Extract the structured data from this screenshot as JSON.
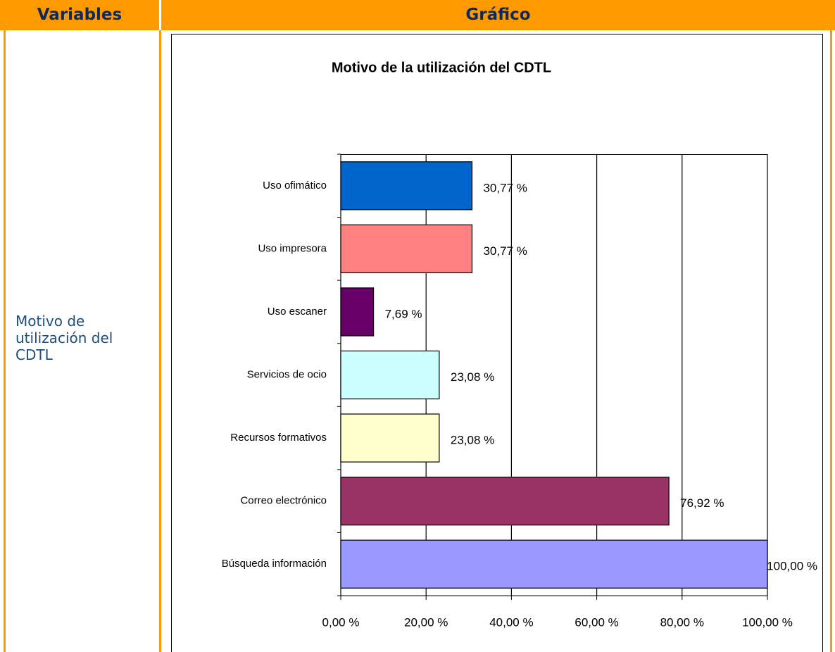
{
  "header": {
    "variables": "Variables",
    "grafico": "Gráfico"
  },
  "variable": "Motivo de utilización del CDTL",
  "chart_data": {
    "type": "bar",
    "orientation": "horizontal",
    "title": "Motivo de la utilización del CDTL",
    "categories": [
      "Uso ofimático",
      "Uso impresora",
      "Uso escaner",
      "Servicios de ocio",
      "Recursos formativos",
      "Correo electrónico",
      "Búsqueda información"
    ],
    "values": [
      30.77,
      30.77,
      7.69,
      23.08,
      23.08,
      76.92,
      100
    ],
    "value_labels": [
      "30,77 %",
      "30,77 %",
      "7,69 %",
      "23,08 %",
      "23,08 %",
      "76,92 %",
      "100,00 %"
    ],
    "colors": [
      "#0066cc",
      "#ff8080",
      "#660066",
      "#ccffff",
      "#ffffcc",
      "#993366",
      "#9999ff"
    ],
    "xlim": [
      0,
      100
    ],
    "xticks": [
      {
        "value": 0,
        "label": "0,00 %"
      },
      {
        "value": 20,
        "label": "20,00 %"
      },
      {
        "value": 40,
        "label": "40,00 %"
      },
      {
        "value": 60,
        "label": "60,00 %"
      },
      {
        "value": 80,
        "label": "80,00 %"
      },
      {
        "value": 100,
        "label": "100,00 %"
      }
    ],
    "grid": true
  }
}
